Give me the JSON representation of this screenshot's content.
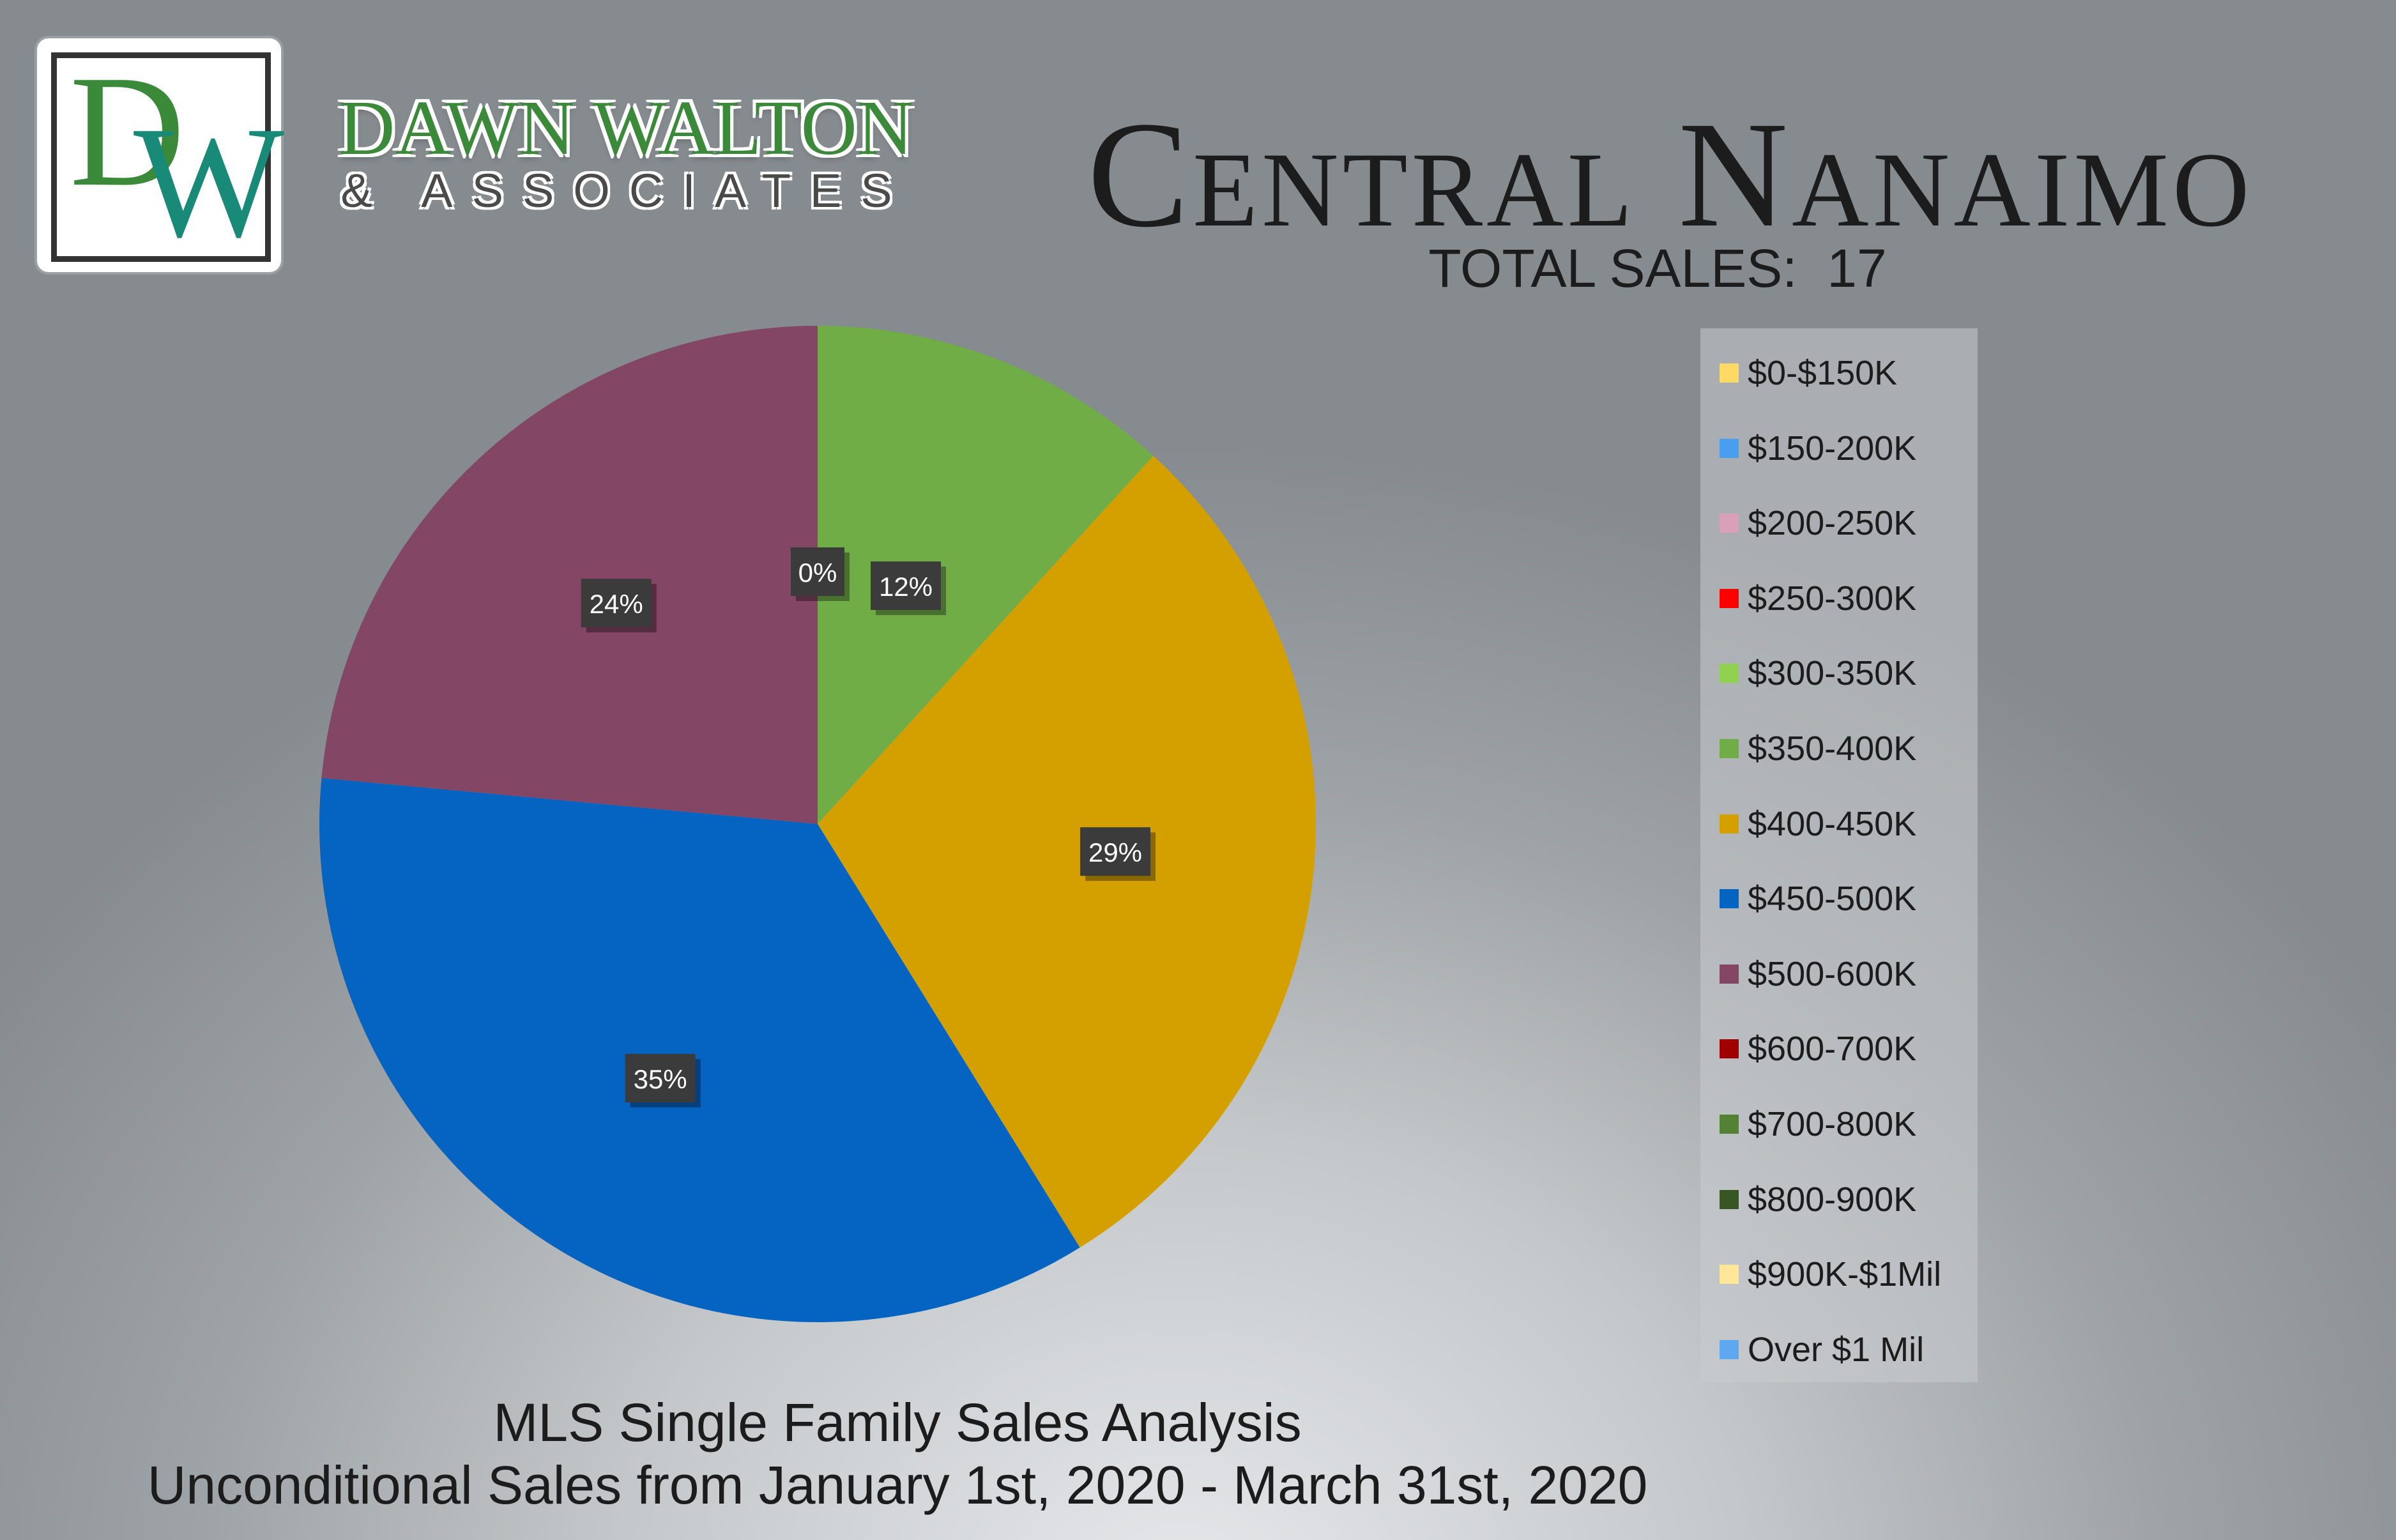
{
  "brand": {
    "name": "DAWN WALTON",
    "subtitle": "& ASSOCIATES",
    "logo_letters": "DW"
  },
  "header": {
    "title": "Central Nanaimo",
    "total_sales_label": "TOTAL SALES:",
    "total_sales_value": "17"
  },
  "footer": {
    "line1": "MLS Single Family Sales Analysis",
    "line2": "Unconditional Sales from January 1st, 2020 - March 31st, 2020"
  },
  "colors": {
    "slice_350_400": "#70ad47",
    "slice_400_450": "#d4a000",
    "slice_450_500": "#0563c1",
    "slice_500_600": "#834664",
    "label_bg": "#3b3b3b"
  },
  "chart_data": {
    "type": "pie",
    "title": "",
    "categories": [
      "$0-$150K",
      "$150-200K",
      "$200-250K",
      "$250-300K",
      "$300-350K",
      "$350-400K",
      "$400-450K",
      "$450-500K",
      "$500-600K",
      "$600-700K",
      "$700-800K",
      "$800-900K",
      "$900K-$1Mil",
      "Over $1 Mil"
    ],
    "values": [
      0,
      0,
      0,
      0,
      0,
      2,
      5,
      6,
      4,
      0,
      0,
      0,
      0,
      0
    ],
    "colors": [
      "#ffd966",
      "#4a9eef",
      "#d9a0b8",
      "#ff0000",
      "#92d050",
      "#70ad47",
      "#d4a000",
      "#0563c1",
      "#834664",
      "#a00000",
      "#548235",
      "#375623",
      "#ffe699",
      "#5fa8f0"
    ],
    "data_labels": [
      {
        "category": "$0-$150K",
        "text": "0%"
      },
      {
        "category": "$350-400K",
        "text": "12%"
      },
      {
        "category": "$400-450K",
        "text": "29%"
      },
      {
        "category": "$450-500K",
        "text": "35%"
      },
      {
        "category": "$500-600K",
        "text": "24%"
      }
    ],
    "legend_position": "right",
    "start_angle_deg": 0,
    "direction": "clockwise"
  }
}
